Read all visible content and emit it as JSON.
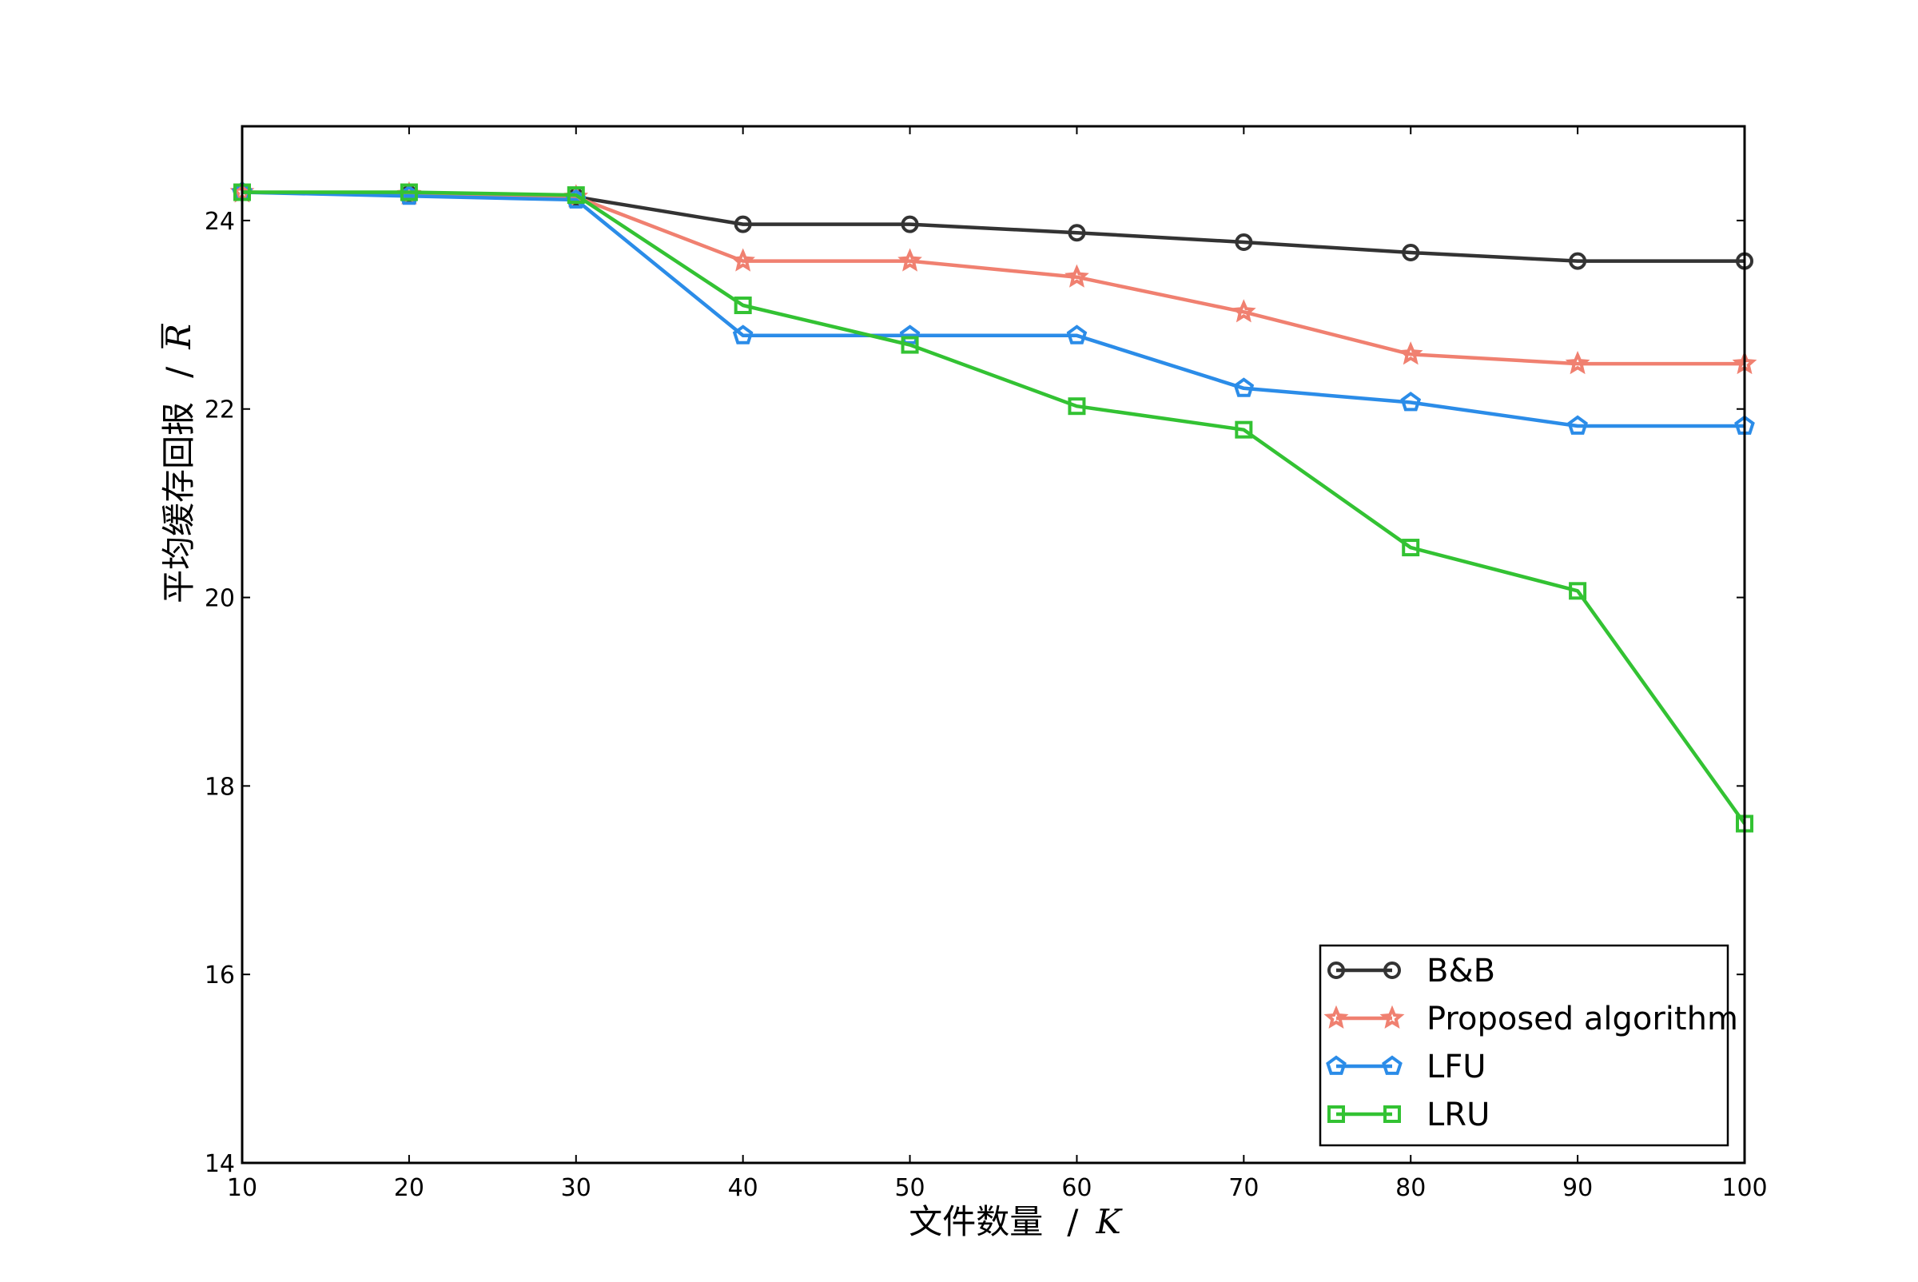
{
  "chart_data": {
    "type": "line",
    "title": "",
    "xlabel": {
      "text": "文件数量",
      "symbol": "K"
    },
    "ylabel": {
      "text": "平均缓存回报",
      "symbol": "R"
    },
    "x": [
      10,
      20,
      30,
      40,
      50,
      60,
      70,
      80,
      90,
      100
    ],
    "xlim": [
      10,
      100
    ],
    "ylim": [
      14,
      25
    ],
    "xticks": [
      10,
      20,
      30,
      40,
      50,
      60,
      70,
      80,
      90,
      100
    ],
    "yticks": [
      14,
      16,
      18,
      20,
      22,
      24
    ],
    "grid": false,
    "legend_position": "bottom-right",
    "series": [
      {
        "name": "B&B",
        "color": "#333333",
        "marker": "circle",
        "values": [
          24.3,
          24.28,
          24.25,
          23.96,
          23.96,
          23.87,
          23.77,
          23.66,
          23.57,
          23.57
        ]
      },
      {
        "name": "Proposed algorithm",
        "color": "#f08070",
        "marker": "star",
        "values": [
          24.3,
          24.28,
          24.25,
          23.57,
          23.57,
          23.4,
          23.03,
          22.58,
          22.48,
          22.48
        ]
      },
      {
        "name": "LFU",
        "color": "#2b8ce8",
        "marker": "pentagon",
        "values": [
          24.3,
          24.26,
          24.22,
          22.78,
          22.78,
          22.78,
          22.22,
          22.07,
          21.82,
          21.82
        ]
      },
      {
        "name": "LRU",
        "color": "#33c233",
        "marker": "square",
        "values": [
          24.3,
          24.3,
          24.27,
          23.1,
          22.68,
          22.03,
          21.78,
          20.53,
          20.07,
          17.6
        ]
      }
    ]
  }
}
